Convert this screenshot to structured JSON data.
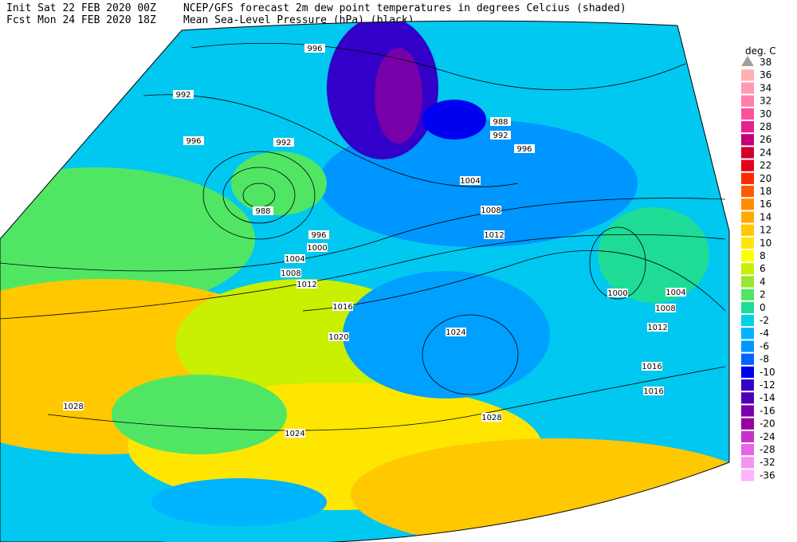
{
  "header": {
    "line1_left": "Init  Sat 22 FEB 2020 00Z",
    "line1_right": "NCEP/GFS forecast 2m dew point temperatures in degrees Celcius (shaded)",
    "line2_left": "Fcst Mon 24 FEB 2020 18Z",
    "line2_right": "Mean Sea-Level Pressure (hPa) (black)."
  },
  "legend": {
    "title": "deg. C",
    "labels": [
      38,
      36,
      34,
      32,
      30,
      28,
      26,
      24,
      22,
      20,
      18,
      16,
      14,
      12,
      10,
      8,
      6,
      4,
      2,
      0,
      -2,
      -4,
      -6,
      -8,
      -10,
      -12,
      -14,
      -16,
      -20,
      -24,
      -28,
      -32,
      -36
    ],
    "colors": [
      "#a0a0a0",
      "#ffb0b0",
      "#ff9ab4",
      "#ff80a8",
      "#ff50a0",
      "#e62090",
      "#c00078",
      "#d0002a",
      "#e6001e",
      "#ff2a00",
      "#ff5a00",
      "#ff8c00",
      "#ffaa00",
      "#ffc800",
      "#ffe600",
      "#ffff00",
      "#c8f000",
      "#96e632",
      "#50e664",
      "#1edc96",
      "#00d2e6",
      "#00b4ff",
      "#0096ff",
      "#0064ff",
      "#0000f0",
      "#3200c8",
      "#5000b4",
      "#7800aa",
      "#9600a0",
      "#c832c8",
      "#e664e6",
      "#f096f0",
      "#ffb4ff"
    ]
  },
  "isobar_labels": [
    996,
    992,
    996,
    992,
    988,
    1004,
    1008,
    1012,
    996,
    1000,
    1004,
    1008,
    1012,
    1016,
    1020,
    1024,
    1028,
    1024,
    1028,
    1000,
    1004,
    1008,
    1012,
    1016,
    1016,
    988,
    992,
    996
  ]
}
